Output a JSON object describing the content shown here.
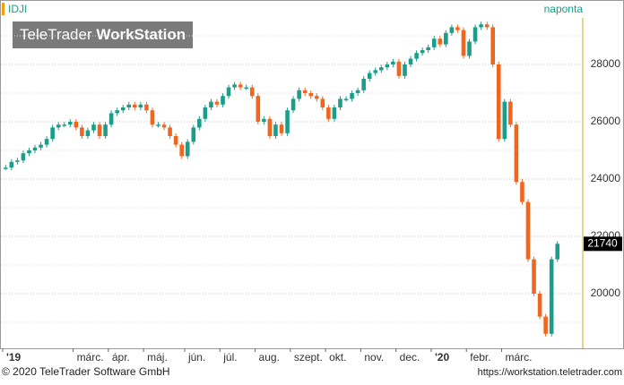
{
  "chart_data": {
    "type": "candlestick",
    "symbol": "IDJI",
    "period": "naponta",
    "watermark": [
      "TeleTrader ",
      "WorkStation"
    ],
    "footer_left": "© 2020 TeleTrader Software GmbH",
    "footer_right": "https://workstation.teletrader.com",
    "up_color": "#1a9e8a",
    "down_color": "#f0661e",
    "categories": [
      "'19",
      null,
      null,
      null,
      null,
      null,
      null,
      null,
      null,
      null,
      null,
      null,
      "márc.",
      null,
      null,
      null,
      null,
      null,
      "ápr.",
      null,
      null,
      null,
      null,
      null,
      "máj.",
      null,
      null,
      null,
      null,
      null,
      null,
      "jún.",
      null,
      null,
      null,
      null,
      null,
      "júl.",
      null,
      null,
      null,
      null,
      null,
      "aug.",
      null,
      null,
      null,
      null,
      null,
      "szept.",
      null,
      null,
      null,
      null,
      null,
      "okt.",
      null,
      null,
      null,
      null,
      null,
      "nov.",
      null,
      null,
      null,
      null,
      null,
      "dec.",
      null,
      null,
      null,
      null,
      null,
      "'20",
      null,
      null,
      null,
      null,
      null,
      "febr.",
      null,
      null,
      null,
      null,
      null,
      "márc.",
      null,
      null,
      null,
      null,
      null,
      null,
      null,
      null,
      null
    ],
    "values": [
      24400,
      24600,
      24650,
      24900,
      25000,
      25100,
      25200,
      25400,
      25800,
      25900,
      25900,
      26000,
      25800,
      25500,
      25700,
      25900,
      25500,
      25900,
      26300,
      26400,
      26500,
      26600,
      26500,
      26600,
      26400,
      25900,
      25900,
      25800,
      25500,
      25200,
      24800,
      25300,
      25800,
      26100,
      26500,
      26700,
      26600,
      26900,
      27200,
      27300,
      27200,
      27200,
      26900,
      26000,
      26100,
      25500,
      25900,
      25600,
      26400,
      26800,
      27100,
      27000,
      26900,
      26800,
      26500,
      26100,
      26500,
      26800,
      26800,
      27000,
      27100,
      27500,
      27700,
      27800,
      27900,
      28000,
      28100,
      27600,
      28000,
      28200,
      28400,
      28500,
      28600,
      28900,
      28700,
      29100,
      29300,
      29200,
      28300,
      28800,
      29300,
      29400,
      29300,
      28000,
      25400,
      26700,
      25900,
      23900,
      23200,
      21200,
      20000,
      19200,
      18600,
      21200,
      21740
    ],
    "ylim": [
      18125,
      29625
    ],
    "yticks": [
      20000,
      22000,
      24000,
      26000,
      28000
    ],
    "minor_yticks": [
      19000,
      21000,
      23000,
      25000,
      27000,
      29000
    ],
    "grid": true
  }
}
